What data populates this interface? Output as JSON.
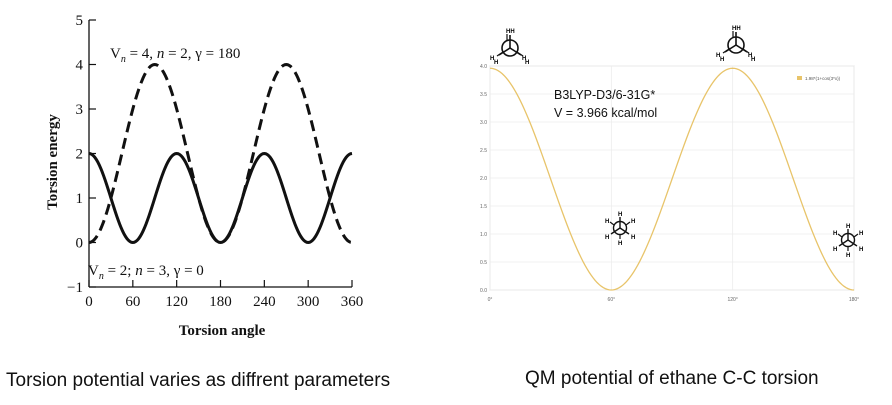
{
  "captions": {
    "left": "Torsion potential varies as diffrent parameters",
    "right": "QM potential of ethane C-C torsion"
  },
  "chart_data": [
    {
      "type": "line",
      "xlabel": "Torsion angle",
      "ylabel": "Torsion energy",
      "xlim": [
        0,
        360
      ],
      "ylim": [
        -1,
        5
      ],
      "xticks": [
        "0",
        "60",
        "120",
        "180",
        "240",
        "300",
        "360"
      ],
      "yticks": [
        "−1",
        "0",
        "1",
        "2",
        "3",
        "4",
        "5"
      ],
      "grid": false,
      "series": [
        {
          "label": "V_n = 4, n = 2, γ = 180",
          "style": "dashed",
          "formula": "V/2*(1+cos(n*x - γ))",
          "V": 4,
          "n": 2,
          "gamma": 180,
          "x": [
            0,
            45,
            90,
            135,
            180,
            225,
            270,
            315,
            360
          ],
          "y": [
            0,
            2,
            4,
            2,
            0,
            2,
            4,
            2,
            0
          ]
        },
        {
          "label": "V_n = 2; n = 3, γ = 0",
          "style": "solid",
          "formula": "V/2*(1+cos(n*x - γ))",
          "V": 2,
          "n": 3,
          "gamma": 0,
          "x": [
            0,
            30,
            60,
            90,
            120,
            150,
            180,
            210,
            240,
            270,
            300,
            330,
            360
          ],
          "y": [
            2,
            1,
            0,
            1,
            2,
            1,
            0,
            1,
            2,
            1,
            0,
            1,
            2
          ]
        }
      ],
      "annotations": {
        "top_label": {
          "V": "V",
          "sub": "n",
          "rest": " = 4, ",
          "n": "n",
          "rest2": " = 2, γ = 180"
        },
        "bottom_label": {
          "V": "V",
          "sub": "n",
          "rest": " = 2; ",
          "n": "n",
          "rest2": " = 3, γ = 0"
        }
      }
    },
    {
      "type": "line",
      "xlabel": "",
      "ylabel": "",
      "xlim": [
        0,
        180
      ],
      "ylim": [
        0,
        4
      ],
      "xticks": [
        "0°",
        "60°",
        "120°",
        "180°"
      ],
      "yticks": [
        "0.0",
        "0.5",
        "1.0",
        "1.5",
        "2.0",
        "2.5",
        "3.0",
        "3.5",
        "4.0"
      ],
      "grid": true,
      "legend": {
        "position": "top-right",
        "entries": [
          "1.98*(1+cos(3*x))"
        ]
      },
      "series": [
        {
          "name": "1.98*(1+cos(3*x))",
          "color": "#e8c46a",
          "x": [
            0,
            30,
            60,
            90,
            120,
            150,
            180
          ],
          "y": [
            3.96,
            1.98,
            0,
            1.98,
            3.96,
            1.98,
            0
          ]
        }
      ],
      "annotations": {
        "method": "B3LYP-D3/6-31G*",
        "barrier": "V = 3.966 kcal/mol"
      },
      "molecule_icons": [
        "eclipsed-ethane-newman-icon",
        "staggered-ethane-newman-icon"
      ]
    }
  ]
}
